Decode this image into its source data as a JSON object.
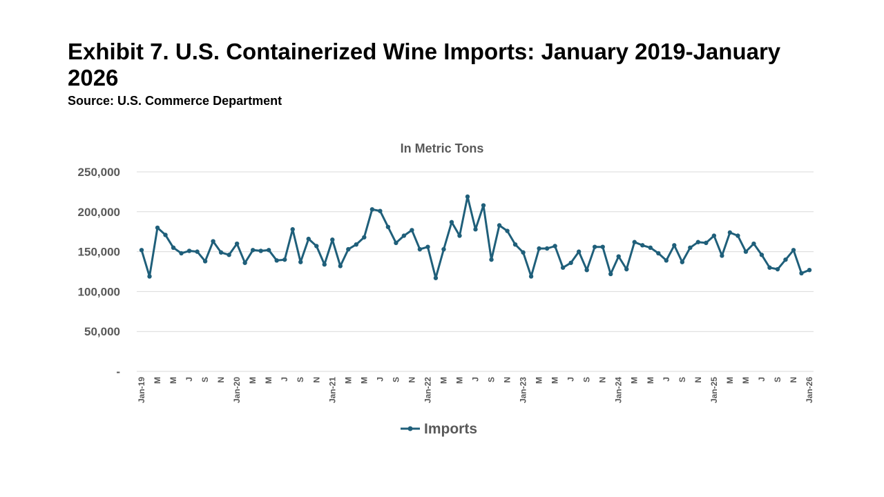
{
  "title": "Exhibit 7. U.S. Containerized Wine Imports: January 2019-January 2026",
  "source": "Source: U.S. Commerce Department",
  "colors": {
    "series": "#1f5f7a",
    "grid": "#d9d9d9",
    "text": "#595959"
  },
  "chart_data": {
    "type": "line",
    "title": "In Metric Tons",
    "xlabel": "",
    "ylabel": "",
    "ylim": [
      0,
      250000
    ],
    "yticks": [
      0,
      50000,
      100000,
      150000,
      200000,
      250000
    ],
    "ytick_labels": [
      "-",
      "50,000",
      "100,000",
      "150,000",
      "200,000",
      "250,000"
    ],
    "grid": true,
    "legend_position": "bottom",
    "tick_labels": [
      "Jan-19",
      "M",
      "M",
      "J",
      "S",
      "N",
      "Jan-20",
      "M",
      "M",
      "J",
      "S",
      "N",
      "Jan-21",
      "M",
      "M",
      "J",
      "S",
      "N",
      "Jan-22",
      "M",
      "M",
      "J",
      "S",
      "N",
      "Jan-23",
      "M",
      "M",
      "J",
      "S",
      "N",
      "Jan-24",
      "M",
      "M",
      "J",
      "S",
      "N",
      "Jan-25",
      "M",
      "M",
      "J",
      "S",
      "N",
      "Jan-26"
    ],
    "series": [
      {
        "name": "Imports",
        "values": [
          152000,
          119000,
          180000,
          171000,
          155000,
          148000,
          151000,
          150000,
          138000,
          163000,
          149000,
          146000,
          160000,
          136000,
          152000,
          151000,
          152000,
          139000,
          140000,
          178000,
          137000,
          166000,
          157000,
          134000,
          165000,
          132000,
          153000,
          159000,
          168000,
          203000,
          201000,
          181000,
          161000,
          170000,
          177000,
          153000,
          156000,
          117000,
          153000,
          187000,
          170000,
          219000,
          178000,
          208000,
          140000,
          183000,
          176000,
          159000,
          149000,
          119000,
          154000,
          154000,
          157000,
          130000,
          136000,
          150000,
          127000,
          156000,
          156000,
          122000,
          144000,
          128000,
          162000,
          158000,
          155000,
          148000,
          139000,
          158000,
          137000,
          155000,
          162000,
          161000,
          170000,
          145000,
          174000,
          170000,
          150000,
          160000,
          146000,
          130000,
          128000,
          140000,
          152000,
          123000,
          127000
        ]
      }
    ]
  }
}
